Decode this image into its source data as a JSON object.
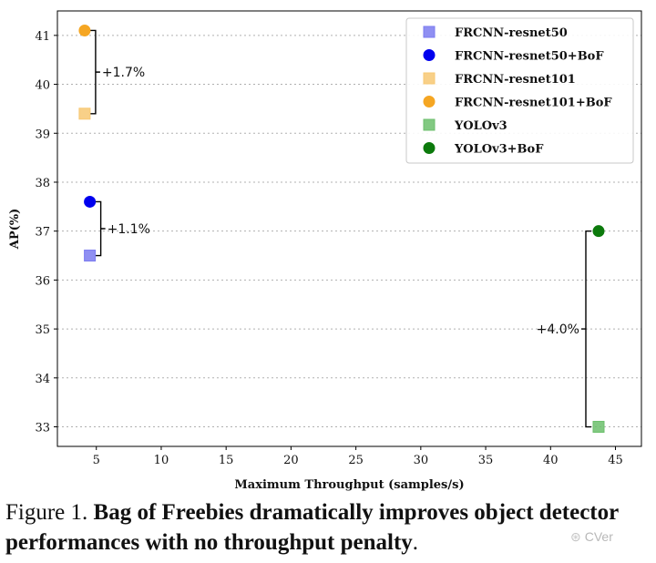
{
  "chart_data": {
    "type": "scatter",
    "title": "",
    "xlabel": "Maximum Throughput (samples/s)",
    "ylabel": "AP(%)",
    "xlim": [
      2,
      47
    ],
    "ylim": [
      32.6,
      41.5
    ],
    "xticks": [
      5,
      10,
      15,
      20,
      25,
      30,
      35,
      40,
      45
    ],
    "yticks": [
      33,
      34,
      35,
      36,
      37,
      38,
      39,
      40,
      41
    ],
    "grid": "horizontal-dotted",
    "legend_position": "top-right",
    "series": [
      {
        "name": "FRCNN-resnet50",
        "marker": "square",
        "color": "#7b7bf0",
        "x": [
          4.5
        ],
        "y": [
          36.5
        ]
      },
      {
        "name": "FRCNN-resnet50+BoF",
        "marker": "circle",
        "color": "#0000ee",
        "x": [
          4.5
        ],
        "y": [
          37.6
        ]
      },
      {
        "name": "FRCNN-resnet101",
        "marker": "square",
        "color": "#f7c873",
        "x": [
          4.1
        ],
        "y": [
          39.4
        ]
      },
      {
        "name": "FRCNN-resnet101+BoF",
        "marker": "circle",
        "color": "#f5a623",
        "x": [
          4.1
        ],
        "y": [
          41.1
        ]
      },
      {
        "name": "YOLOv3",
        "marker": "square",
        "color": "#6cbf6c",
        "x": [
          43.7
        ],
        "y": [
          33.0
        ]
      },
      {
        "name": "YOLOv3+BoF",
        "marker": "circle",
        "color": "#0c7a0c",
        "x": [
          43.7
        ],
        "y": [
          37.0
        ]
      }
    ],
    "annotations": [
      {
        "text": "+1.7%",
        "x": 4.1,
        "y_low": 39.4,
        "y_high": 41.1,
        "side": "right"
      },
      {
        "text": "+1.1%",
        "x": 4.5,
        "y_low": 36.5,
        "y_high": 37.6,
        "side": "right"
      },
      {
        "text": "+4.0%",
        "x": 43.7,
        "y_low": 33.0,
        "y_high": 37.0,
        "side": "left"
      }
    ]
  },
  "caption": {
    "label": "Figure 1.",
    "text": "Bag of Freebies dramatically improves object detector performances with no throughput penalty",
    "end": "."
  },
  "watermark": {
    "text": "CVer"
  }
}
